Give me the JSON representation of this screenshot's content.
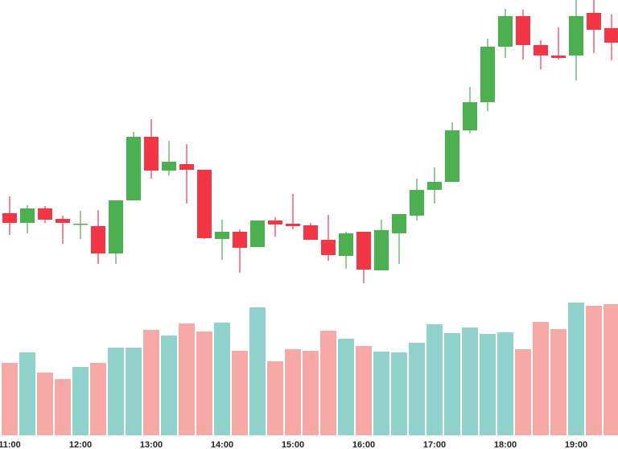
{
  "chart_data": {
    "type": "candlestick",
    "categories": [
      "11:00",
      null,
      null,
      null,
      "12:00",
      null,
      null,
      null,
      "13:00",
      null,
      null,
      null,
      "14:00",
      null,
      null,
      null,
      "15:00",
      null,
      null,
      null,
      "16:00",
      null,
      null,
      null,
      "17:00",
      null,
      null,
      null,
      "18:00",
      null,
      null,
      null,
      "19:00",
      null,
      null
    ],
    "open": [
      95,
      83,
      101,
      88,
      81,
      79,
      45,
      111,
      190,
      148,
      156,
      149,
      63,
      72,
      53,
      86,
      82,
      80,
      62,
      42,
      72,
      24,
      70,
      92,
      124,
      134,
      198,
      233,
      302,
      340,
      304,
      291,
      291,
      344,
      325
    ],
    "high": [
      116,
      105,
      104,
      92,
      98,
      99,
      111,
      196,
      212,
      185,
      181,
      149,
      87,
      75,
      86,
      90,
      119,
      83,
      93,
      72,
      72,
      87,
      94,
      138,
      152,
      208,
      252,
      312,
      349,
      348,
      310,
      326,
      360,
      360,
      342
    ],
    "low": [
      68,
      70,
      83,
      57,
      63,
      32,
      32,
      111,
      138,
      142,
      107,
      63,
      37,
      21,
      53,
      66,
      75,
      62,
      36,
      26,
      8,
      24,
      32,
      86,
      107,
      134,
      194,
      222,
      288,
      286,
      274,
      286,
      260,
      294,
      285
    ],
    "close": [
      83,
      101,
      87,
      83,
      82,
      45,
      111,
      190,
      148,
      159,
      149,
      64,
      72,
      52,
      86,
      81,
      79,
      62,
      43,
      70,
      25,
      74,
      94,
      124,
      134,
      198,
      233,
      302,
      340,
      304,
      291,
      288,
      340,
      323,
      307
    ],
    "volume": [
      90,
      103,
      78,
      70,
      85,
      90,
      109,
      109,
      131,
      124,
      139,
      129,
      140,
      105,
      159,
      92,
      107,
      105,
      130,
      120,
      111,
      104,
      103,
      115,
      138,
      127,
      134,
      126,
      128,
      107,
      141,
      132,
      165,
      161,
      163
    ],
    "ylim": [
      0,
      360
    ],
    "volume_ylim": [
      0,
      171
    ],
    "up_color": "#4caf50",
    "down_color": "#f23645",
    "volume_up_color": "#92d2cc",
    "volume_down_color": "#f7a9a7"
  }
}
